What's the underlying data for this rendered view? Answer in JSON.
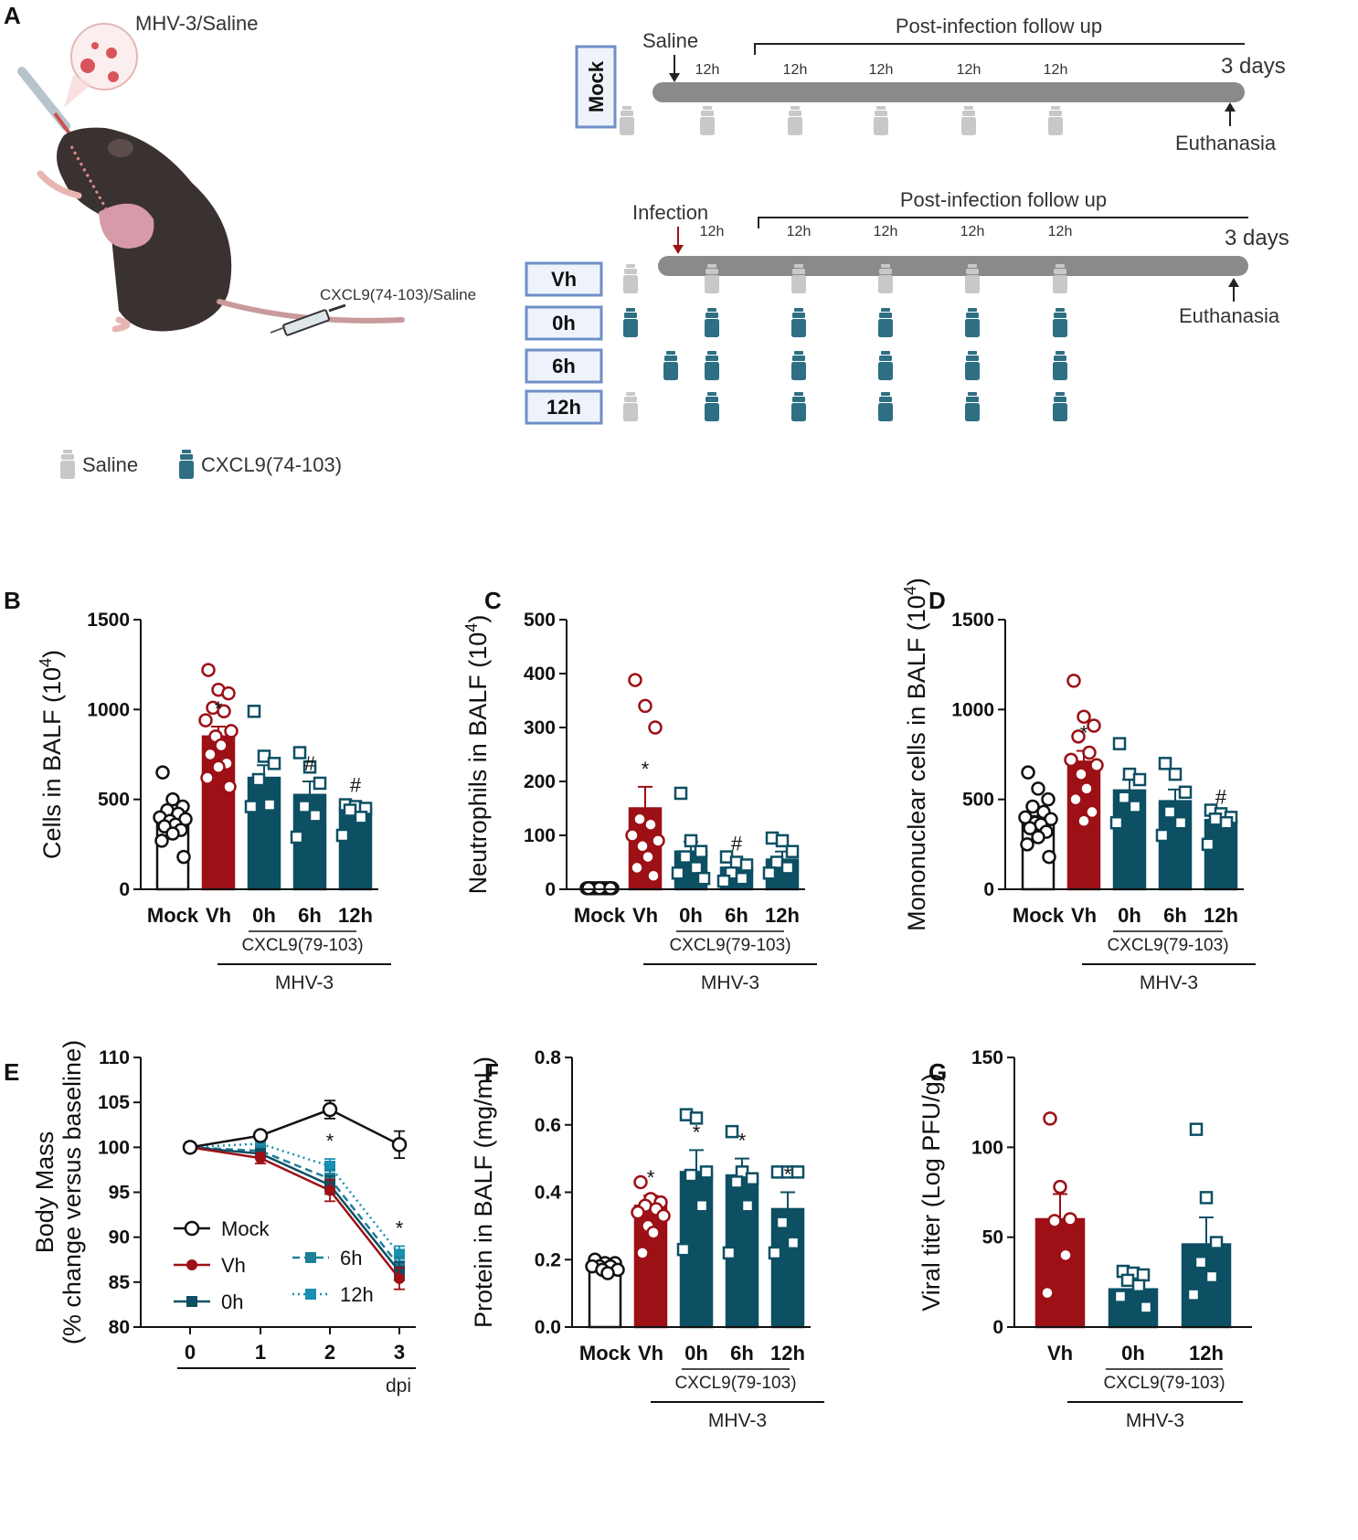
{
  "colors": {
    "mock": "#111111",
    "vh": "#9c1016",
    "cxcl": "#0d4f63",
    "cxcl_light": "#1a8fb0",
    "saline_vial": "#c8c8c8",
    "timeline_bar": "#8a8a8a",
    "box_border": "#6f8fc6"
  },
  "panel_a": {
    "label": "A",
    "mouse_title": "MHV-3/Saline",
    "syringe_label": "CXCL9(74-103)/Saline",
    "legend": {
      "saline": "Saline",
      "cxcl9": "CXCL9(74-103)"
    },
    "mock_timeline": {
      "group": "Mock",
      "start_label": "Saline",
      "followup": "Post-infection follow up",
      "intervals": [
        "12h",
        "12h",
        "12h",
        "12h",
        "12h"
      ],
      "end_label": "3 days",
      "euthanasia": "Euthanasia"
    },
    "infection_timeline": {
      "start_label": "Infection",
      "followup": "Post-infection follow up",
      "intervals": [
        "12h",
        "12h",
        "12h",
        "12h",
        "12h"
      ],
      "end_label": "3 days",
      "euthanasia": "Euthanasia",
      "groups": [
        "Vh",
        "0h",
        "6h",
        "12h"
      ]
    }
  },
  "chart_data": [
    {
      "panel": "B",
      "type": "bar",
      "ylabel": "Cells in BALF (10^4)",
      "ylabel_main": "Cells in BALF (10",
      "ylabel_exp": "4",
      "ylabel_close": ")",
      "ylim": [
        0,
        1500
      ],
      "yticks": [
        "0",
        "500",
        "1000",
        "1500"
      ],
      "categories": [
        "Mock",
        "Vh",
        "0h",
        "6h",
        "12h"
      ],
      "values": [
        370,
        850,
        620,
        525,
        450
      ],
      "sem": [
        38,
        55,
        70,
        75,
        30
      ],
      "annotations": [
        "",
        "*",
        "",
        "#",
        "#"
      ],
      "group_label_1": "CXCL9(79-103)",
      "group_label_2": "MHV-3",
      "points": [
        [
          650,
          500,
          460,
          440,
          420,
          400,
          390,
          380,
          360,
          350,
          330,
          310,
          270,
          180
        ],
        [
          1220,
          1110,
          1090,
          1010,
          990,
          940,
          880,
          850,
          800,
          750,
          700,
          680,
          620,
          570
        ],
        [
          990,
          740,
          700,
          610,
          470,
          460
        ],
        [
          760,
          680,
          590,
          460,
          410,
          290
        ],
        [
          470,
          460,
          450,
          440,
          400,
          300
        ]
      ]
    },
    {
      "panel": "C",
      "type": "bar",
      "ylabel": "Neutrophils in BALF (10^4)",
      "ylabel_main": "Neutrophils in BALF (10",
      "ylabel_exp": "4",
      "ylabel_close": ")",
      "ylim": [
        0,
        500
      ],
      "yticks": [
        "0",
        "100",
        "200",
        "300",
        "400",
        "500"
      ],
      "categories": [
        "Mock",
        "Vh",
        "0h",
        "6h",
        "12h"
      ],
      "values": [
        2,
        150,
        70,
        40,
        55
      ],
      "sem": [
        0.5,
        40,
        18,
        12,
        15
      ],
      "annotations": [
        "",
        "*",
        "",
        "#",
        ""
      ],
      "group_label_1": "CXCL9(79-103)",
      "group_label_2": "MHV-3",
      "points": [
        [
          2,
          2,
          2,
          2,
          2,
          2,
          2,
          2,
          2,
          2,
          2,
          2,
          2,
          2
        ],
        [
          388,
          340,
          300,
          130,
          120,
          100,
          90,
          80,
          60,
          40,
          25
        ],
        [
          178,
          90,
          70,
          60,
          40,
          30,
          20
        ],
        [
          60,
          50,
          45,
          30,
          20,
          15
        ],
        [
          95,
          90,
          70,
          50,
          40,
          30
        ]
      ]
    },
    {
      "panel": "D",
      "type": "bar",
      "ylabel": "Mononuclear cells in BALF (10^4)",
      "ylabel_main": "Mononuclear cells in BALF (10",
      "ylabel_exp": "4",
      "ylabel_close": ")",
      "ylim": [
        0,
        1500
      ],
      "yticks": [
        "0",
        "500",
        "1000",
        "1500"
      ],
      "categories": [
        "Mock",
        "Vh",
        "0h",
        "6h",
        "12h"
      ],
      "values": [
        370,
        710,
        550,
        490,
        385
      ],
      "sem": [
        38,
        60,
        60,
        65,
        30
      ],
      "annotations": [
        "",
        "*",
        "",
        "",
        "#"
      ],
      "group_label_1": "CXCL9(79-103)",
      "group_label_2": "MHV-3",
      "points": [
        [
          650,
          560,
          500,
          460,
          430,
          400,
          390,
          370,
          360,
          340,
          320,
          290,
          250,
          180
        ],
        [
          1160,
          960,
          910,
          850,
          760,
          720,
          690,
          640,
          560,
          500,
          430,
          380
        ],
        [
          810,
          640,
          610,
          510,
          460,
          370
        ],
        [
          700,
          640,
          540,
          430,
          370,
          300
        ],
        [
          440,
          420,
          400,
          390,
          370,
          250
        ]
      ]
    },
    {
      "panel": "E",
      "type": "line",
      "ylabel_1": "Body Mass",
      "ylabel_2": "(% change versus baseline)",
      "xlabel": "dpi",
      "ylim": [
        80,
        110
      ],
      "yticks": [
        "80",
        "85",
        "90",
        "95",
        "100",
        "105",
        "110"
      ],
      "x": [
        0,
        1,
        2,
        3
      ],
      "xticks": [
        "0",
        "1",
        "2",
        "3"
      ],
      "series": [
        {
          "name": "Mock",
          "values": [
            100,
            101.3,
            104.2,
            100.3
          ],
          "sem": [
            0.3,
            0.4,
            1.0,
            1.5
          ]
        },
        {
          "name": "Vh",
          "values": [
            100,
            98.8,
            95.2,
            85.4
          ],
          "sem": [
            0.3,
            0.6,
            1.2,
            1.2
          ]
        },
        {
          "name": "0h",
          "values": [
            100,
            99.3,
            95.8,
            86.2
          ],
          "sem": [
            0.3,
            0.5,
            1.0,
            1.0
          ]
        },
        {
          "name": "6h",
          "values": [
            100,
            99.6,
            96.5,
            86.8
          ],
          "sem": [
            0.3,
            0.5,
            1.0,
            1.0
          ]
        },
        {
          "name": "12h",
          "values": [
            100,
            100.4,
            97.9,
            88.1
          ],
          "sem": [
            0.3,
            0.5,
            0.8,
            0.9
          ]
        }
      ],
      "annotations": [
        {
          "x": 2,
          "text": "*"
        },
        {
          "x": 3,
          "text": "*"
        }
      ]
    },
    {
      "panel": "F",
      "type": "bar",
      "ylabel": "Protein in BALF (mg/mL)",
      "ylim": [
        0,
        0.8
      ],
      "yticks": [
        "0.0",
        "0.2",
        "0.4",
        "0.6",
        "0.8"
      ],
      "categories": [
        "Mock",
        "Vh",
        "0h",
        "6h",
        "12h"
      ],
      "values": [
        0.18,
        0.36,
        0.46,
        0.45,
        0.35
      ],
      "sem": [
        0.01,
        0.03,
        0.065,
        0.05,
        0.05
      ],
      "annotations": [
        "",
        "*",
        "*",
        "*",
        "*"
      ],
      "group_label_1": "CXCL9(79-103)",
      "group_label_2": "MHV-3",
      "points": [
        [
          0.2,
          0.19,
          0.19,
          0.18,
          0.18,
          0.18,
          0.17,
          0.17,
          0.16
        ],
        [
          0.43,
          0.38,
          0.37,
          0.36,
          0.35,
          0.34,
          0.33,
          0.3,
          0.28,
          0.22
        ],
        [
          0.63,
          0.62,
          0.46,
          0.45,
          0.36,
          0.23
        ],
        [
          0.58,
          0.46,
          0.44,
          0.43,
          0.36,
          0.22
        ],
        [
          0.46,
          0.46,
          0.46,
          0.31,
          0.25,
          0.22
        ]
      ]
    },
    {
      "panel": "G",
      "type": "bar",
      "ylabel": "Viral titer (Log PFU/g)",
      "ylim": [
        0,
        150
      ],
      "yticks": [
        "0",
        "50",
        "100",
        "150"
      ],
      "categories": [
        "Vh",
        "0h",
        "12h"
      ],
      "values": [
        60,
        21,
        46
      ],
      "sem": [
        14,
        3,
        15
      ],
      "annotations": [
        "",
        "",
        ""
      ],
      "group_label_1": "CXCL9(79-103)",
      "group_label_2": "MHV-3",
      "points": [
        [
          116,
          78,
          60,
          59,
          40,
          19
        ],
        [
          31,
          30,
          29,
          26,
          23,
          17,
          11
        ],
        [
          110,
          72,
          47,
          36,
          28,
          18
        ]
      ]
    }
  ]
}
